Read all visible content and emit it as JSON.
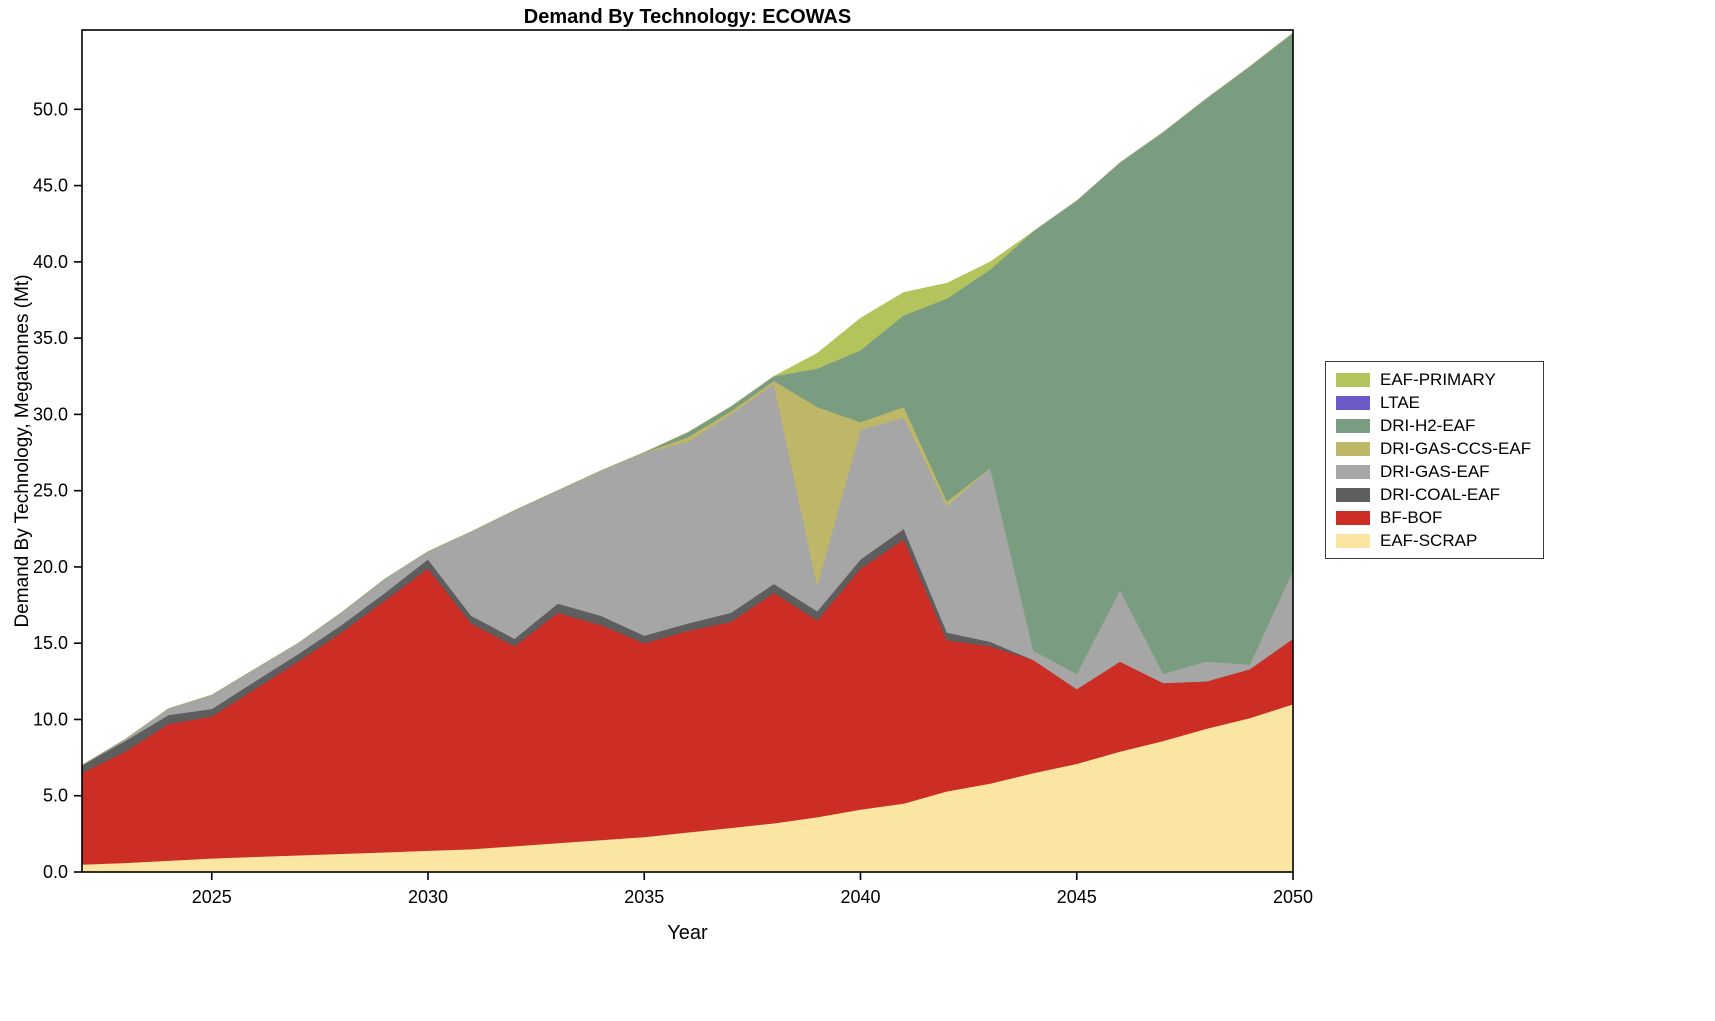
{
  "chart_data": {
    "type": "area",
    "stacked": true,
    "title": "Demand By Technology: ECOWAS",
    "xlabel": "Year",
    "ylabel": "Demand By Technology, Megatonnes (Mt)",
    "xlim": [
      2022,
      2050
    ],
    "ylim": [
      0,
      55.2
    ],
    "xticks": [
      2025,
      2030,
      2035,
      2040,
      2045,
      2050
    ],
    "yticks": [
      0,
      5,
      10,
      15,
      20,
      25,
      30,
      35,
      40,
      45,
      50
    ],
    "ytick_labels": [
      "0.0",
      "5.0",
      "10.0",
      "15.0",
      "20.0",
      "25.0",
      "30.0",
      "35.0",
      "40.0",
      "45.0",
      "50.0"
    ],
    "grid": false,
    "legend_position": "right-outside",
    "x": [
      2022,
      2023,
      2024,
      2025,
      2026,
      2027,
      2028,
      2029,
      2030,
      2031,
      2032,
      2033,
      2034,
      2035,
      2036,
      2037,
      2038,
      2039,
      2040,
      2041,
      2042,
      2043,
      2044,
      2045,
      2046,
      2047,
      2048,
      2049,
      2050
    ],
    "series": [
      {
        "name": "EAF-SCRAP",
        "color": "#fbe5a2",
        "values": [
          0.5,
          0.6,
          0.75,
          0.9,
          1.0,
          1.1,
          1.2,
          1.3,
          1.4,
          1.5,
          1.7,
          1.9,
          2.1,
          2.3,
          2.6,
          2.9,
          3.2,
          3.6,
          4.1,
          4.5,
          5.3,
          5.8,
          6.5,
          7.1,
          7.9,
          8.6,
          9.4,
          10.1,
          11.0
        ]
      },
      {
        "name": "BF-BOF",
        "color": "#cc2d24",
        "values": [
          6.0,
          7.3,
          8.95,
          9.3,
          11.0,
          12.7,
          14.5,
          16.5,
          18.5,
          14.8,
          13.1,
          15.1,
          14.1,
          12.7,
          13.2,
          13.5,
          15.1,
          12.9,
          15.8,
          17.3,
          9.9,
          9.0,
          7.4,
          4.9,
          5.9,
          3.8,
          3.1,
          3.2,
          4.3
        ]
      },
      {
        "name": "DRI-COAL-EAF",
        "color": "#5e5e5e",
        "values": [
          0.5,
          0.7,
          0.6,
          0.5,
          0.5,
          0.5,
          0.5,
          0.5,
          0.6,
          0.5,
          0.5,
          0.6,
          0.6,
          0.5,
          0.5,
          0.6,
          0.6,
          0.6,
          0.6,
          0.7,
          0.5,
          0.3,
          0,
          0,
          0,
          0,
          0,
          0,
          0
        ]
      },
      {
        "name": "DRI-GAS-EAF",
        "color": "#a6a6a6",
        "values": [
          0,
          0.1,
          0.4,
          0.9,
          0.8,
          0.7,
          0.8,
          0.9,
          0.5,
          5.5,
          8.4,
          7.4,
          9.5,
          12.0,
          11.9,
          13.0,
          13.1,
          1.7,
          8.5,
          7.3,
          8.3,
          11.4,
          0.6,
          1.0,
          4.7,
          0.6,
          1.3,
          0.3,
          4.5
        ]
      },
      {
        "name": "DRI-GAS-CCS-EAF",
        "color": "#bfb768",
        "values": [
          0,
          0,
          0,
          0,
          0,
          0,
          0,
          0,
          0,
          0,
          0,
          0,
          0,
          0,
          0.3,
          0.2,
          0.2,
          11.7,
          0.5,
          0.7,
          0.3,
          0,
          0,
          0,
          0,
          0,
          0,
          0,
          0
        ]
      },
      {
        "name": "DRI-H2-EAF",
        "color": "#7a9c80",
        "values": [
          0,
          0,
          0,
          0,
          0,
          0,
          0,
          0,
          0,
          0,
          0,
          0,
          0,
          0,
          0.3,
          0.3,
          0.3,
          2.5,
          4.7,
          6.0,
          13.3,
          13.0,
          27.5,
          31.0,
          28.0,
          35.5,
          36.9,
          39.2,
          35.2
        ]
      },
      {
        "name": "LTAE",
        "color": "#6a5bc7",
        "values": [
          0,
          0,
          0,
          0,
          0,
          0,
          0,
          0,
          0,
          0,
          0,
          0,
          0,
          0,
          0,
          0,
          0,
          0,
          0,
          0,
          0,
          0,
          0,
          0,
          0,
          0,
          0,
          0,
          0
        ]
      },
      {
        "name": "EAF-PRIMARY",
        "color": "#b4c45c",
        "values": [
          0,
          0,
          0,
          0,
          0,
          0,
          0,
          0,
          0,
          0,
          0,
          0,
          0,
          0,
          0,
          0,
          0,
          1.0,
          2.1,
          1.5,
          1.0,
          0.5,
          0,
          0,
          0,
          0,
          0,
          0,
          0
        ]
      }
    ]
  }
}
